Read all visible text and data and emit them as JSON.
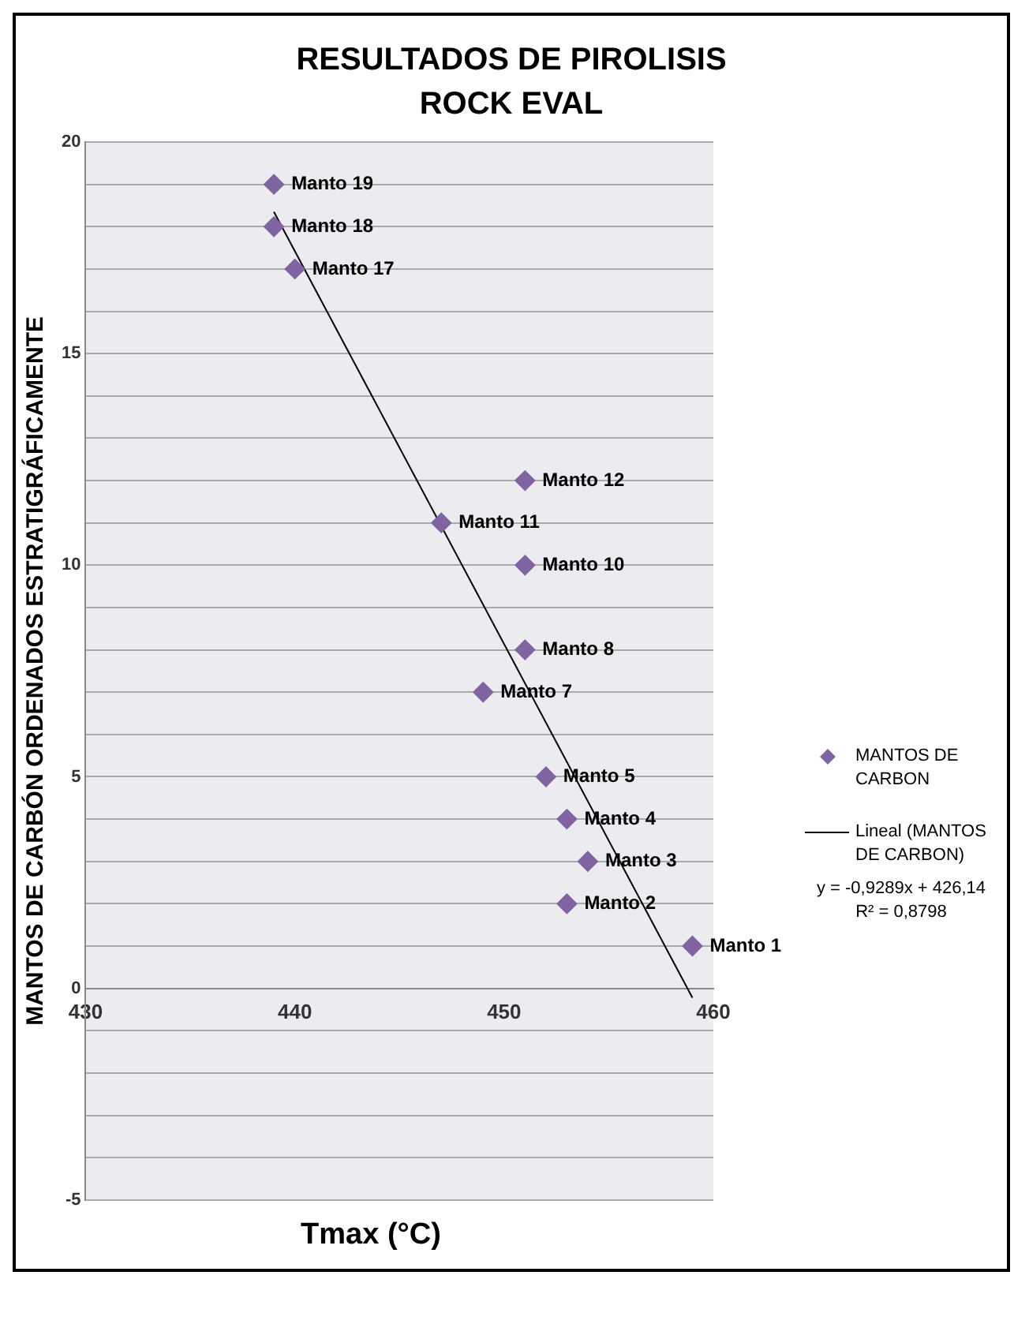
{
  "chart_data": {
    "type": "scatter",
    "title": "RESULTADOS DE PIROLISIS ROCK EVAL",
    "xlabel": "Tmax (°C)",
    "ylabel": "MANTOS DE CARBÓN ORDENADOS ESTRATIGRÁFICAMENTE",
    "xlim": [
      430,
      460
    ],
    "xticks": [
      430,
      440,
      450,
      460
    ],
    "ylim": [
      -5,
      20
    ],
    "yticks": [
      -5,
      {
        "value": -4,
        "label": null
      },
      {
        "value": -3,
        "label": null
      },
      {
        "value": -2,
        "label": null
      },
      {
        "value": -1,
        "label": null
      },
      0,
      {
        "value": 1,
        "label": null
      },
      {
        "value": 2,
        "label": null
      },
      {
        "value": 3,
        "label": null
      },
      {
        "value": 4,
        "label": null
      },
      5,
      {
        "value": 6,
        "label": null
      },
      {
        "value": 7,
        "label": null
      },
      {
        "value": 8,
        "label": null
      },
      {
        "value": 9,
        "label": null
      },
      10,
      {
        "value": 11,
        "label": null
      },
      {
        "value": 12,
        "label": null
      },
      {
        "value": 13,
        "label": null
      },
      {
        "value": 14,
        "label": null
      },
      15,
      {
        "value": 16,
        "label": null
      },
      {
        "value": 17,
        "label": null
      },
      {
        "value": 18,
        "label": null
      },
      {
        "value": 19,
        "label": null
      },
      20
    ],
    "grid": "y",
    "legend": "right",
    "marker": "diamond",
    "series": [
      {
        "name": "MANTOS DE CARBON",
        "color": "#8064a2",
        "x": [
          439,
          439,
          440,
          451,
          447,
          451,
          451,
          449,
          452,
          453,
          454,
          453,
          459
        ],
        "values": [
          19,
          18,
          17,
          12,
          11,
          10,
          8,
          7,
          5,
          4,
          3,
          2,
          1
        ]
      },
      {
        "name": "Lineal (MANTOS DE CARBON)",
        "type": "line",
        "color": "#000000",
        "marker": "none",
        "x": [
          439,
          459
        ],
        "values": [
          18.35,
          -0.22
        ]
      }
    ],
    "annotations": [
      {
        "text": "Manto 19",
        "x": 439,
        "y": 19
      },
      {
        "text": "Manto 18",
        "x": 439,
        "y": 18
      },
      {
        "text": "Manto 17",
        "x": 440,
        "y": 17
      },
      {
        "text": "Manto 12",
        "x": 451,
        "y": 12
      },
      {
        "text": "Manto 11",
        "x": 447,
        "y": 11
      },
      {
        "text": "Manto 10",
        "x": 451,
        "y": 10
      },
      {
        "text": "Manto 8",
        "x": 451,
        "y": 8
      },
      {
        "text": "Manto 7",
        "x": 449,
        "y": 7
      },
      {
        "text": "Manto 5",
        "x": 452,
        "y": 5
      },
      {
        "text": "Manto 4",
        "x": 453,
        "y": 4
      },
      {
        "text": "Manto 3",
        "x": 454,
        "y": 3
      },
      {
        "text": "Manto 2",
        "x": 453,
        "y": 2
      },
      {
        "text": "Manto 1",
        "x": 459,
        "y": 1
      },
      "y = -0,9289x + 426,14",
      "R² = 0,8798"
    ]
  }
}
